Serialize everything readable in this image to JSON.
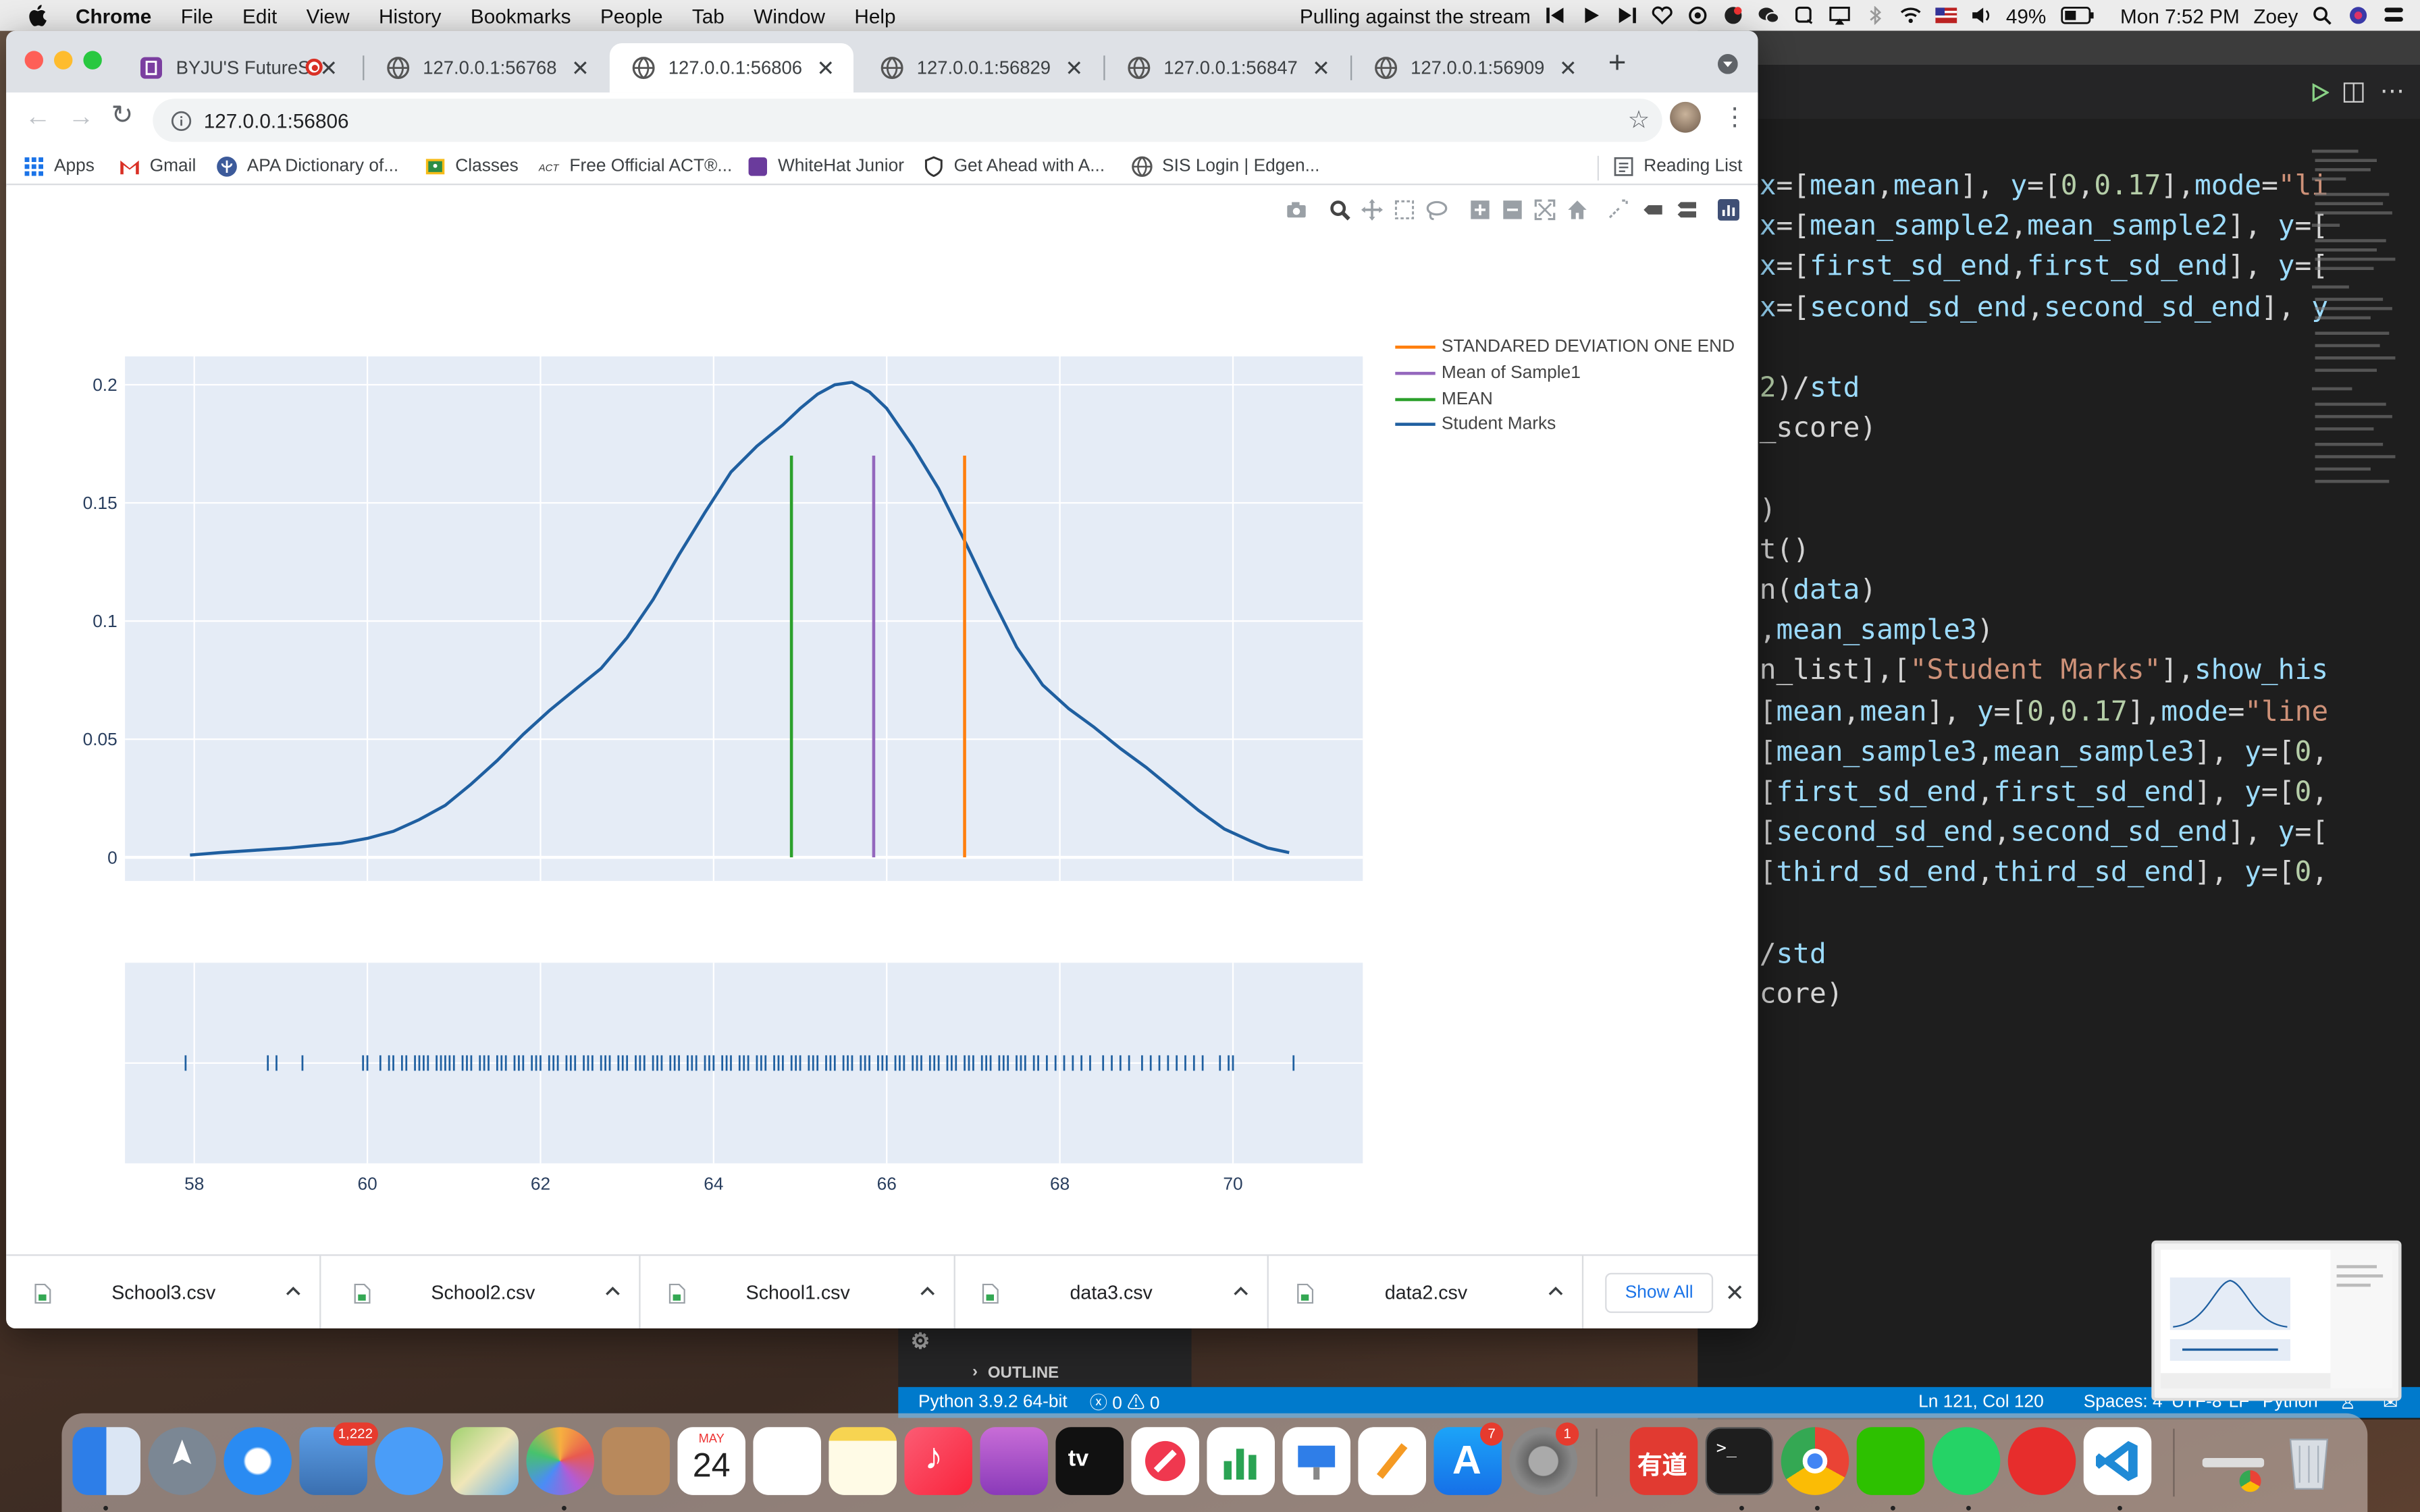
{
  "menubar": {
    "app": "Chrome",
    "items": [
      "File",
      "Edit",
      "View",
      "History",
      "Bookmarks",
      "People",
      "Tab",
      "Window",
      "Help"
    ],
    "now_playing": "Pulling against the stream",
    "battery": "49%",
    "clock": "Mon 7:52 PM",
    "user": "Zoey"
  },
  "browser": {
    "tabs": [
      {
        "title": "BYJU'S FutureSc"
      },
      {
        "title": "127.0.0.1:56768"
      },
      {
        "title": "127.0.0.1:56806"
      },
      {
        "title": "127.0.0.1:56829"
      },
      {
        "title": "127.0.0.1:56847"
      },
      {
        "title": "127.0.0.1:56909"
      }
    ],
    "active_tab": 2,
    "url": "127.0.0.1:56806",
    "bookmarks": [
      "Apps",
      "Gmail",
      "APA Dictionary of...",
      "Classes",
      "Free Official ACT®...",
      "WhiteHat Junior",
      "Get Ahead with A...",
      "SIS Login | Edgen..."
    ],
    "reading_list": "Reading List"
  },
  "chart_data": {
    "type": "line",
    "title": "",
    "xlabel": "",
    "ylabel": "",
    "xlim": [
      57.2,
      71.5
    ],
    "ylim": [
      -0.01,
      0.212
    ],
    "x_ticks": [
      58,
      60,
      62,
      64,
      66,
      68,
      70
    ],
    "y_ticks": [
      0,
      0.05,
      0.1,
      0.15,
      0.2
    ],
    "y_tick_labels": [
      "0",
      "0.05",
      "0.1",
      "0.15",
      "0.2"
    ],
    "grid": true,
    "legend_position": "top-right",
    "series": [
      {
        "name": "Student Marks",
        "color": "#1f5fa0",
        "x": [
          57.95,
          58.3,
          58.7,
          59.1,
          59.4,
          59.7,
          60.0,
          60.3,
          60.6,
          60.9,
          61.2,
          61.5,
          61.8,
          62.1,
          62.4,
          62.7,
          63.0,
          63.3,
          63.6,
          63.9,
          64.2,
          64.5,
          64.8,
          65.0,
          65.2,
          65.4,
          65.6,
          65.8,
          66.0,
          66.3,
          66.6,
          66.9,
          67.2,
          67.5,
          67.8,
          68.1,
          68.4,
          68.7,
          69.0,
          69.3,
          69.6,
          69.9,
          70.2,
          70.4,
          70.65
        ],
        "y": [
          0.001,
          0.002,
          0.003,
          0.004,
          0.005,
          0.006,
          0.008,
          0.011,
          0.016,
          0.022,
          0.031,
          0.041,
          0.052,
          0.062,
          0.071,
          0.08,
          0.093,
          0.109,
          0.128,
          0.146,
          0.163,
          0.174,
          0.183,
          0.19,
          0.196,
          0.2,
          0.201,
          0.197,
          0.19,
          0.174,
          0.156,
          0.134,
          0.111,
          0.089,
          0.073,
          0.063,
          0.055,
          0.046,
          0.038,
          0.029,
          0.02,
          0.012,
          0.007,
          0.004,
          0.002
        ]
      },
      {
        "name": "MEAN",
        "color": "#2ca02c",
        "x": [
          64.9,
          64.9
        ],
        "y": [
          0,
          0.17
        ]
      },
      {
        "name": "Mean of Sample1",
        "color": "#9467bd",
        "x": [
          65.85,
          65.85
        ],
        "y": [
          0,
          0.17
        ]
      },
      {
        "name": "STANDARED DEVIATION ONE END",
        "color": "#ff7f0e",
        "x": [
          66.9,
          66.9
        ],
        "y": [
          0,
          0.17
        ]
      }
    ],
    "rug": {
      "name": "Student Marks",
      "color": "#1f5fa0",
      "x": [
        57.9,
        58.85,
        58.95,
        59.25,
        59.95,
        60.0,
        60.15,
        60.25,
        60.3,
        60.4,
        60.45,
        60.55,
        60.6,
        60.65,
        60.7,
        60.8,
        60.85,
        60.9,
        60.95,
        61.0,
        61.1,
        61.15,
        61.2,
        61.3,
        61.35,
        61.4,
        61.5,
        61.55,
        61.6,
        61.7,
        61.75,
        61.8,
        61.9,
        61.95,
        62.0,
        62.1,
        62.15,
        62.2,
        62.3,
        62.35,
        62.4,
        62.5,
        62.55,
        62.6,
        62.7,
        62.75,
        62.8,
        62.9,
        62.95,
        63.0,
        63.1,
        63.15,
        63.2,
        63.3,
        63.35,
        63.4,
        63.5,
        63.55,
        63.6,
        63.7,
        63.75,
        63.8,
        63.9,
        63.95,
        64.0,
        64.1,
        64.15,
        64.2,
        64.3,
        64.35,
        64.4,
        64.5,
        64.55,
        64.6,
        64.7,
        64.75,
        64.8,
        64.9,
        64.95,
        65.0,
        65.1,
        65.15,
        65.2,
        65.3,
        65.35,
        65.4,
        65.5,
        65.55,
        65.6,
        65.7,
        65.75,
        65.8,
        65.9,
        65.95,
        66.0,
        66.1,
        66.15,
        66.2,
        66.3,
        66.35,
        66.4,
        66.5,
        66.55,
        66.6,
        66.7,
        66.75,
        66.8,
        66.9,
        66.95,
        67.0,
        67.1,
        67.15,
        67.2,
        67.3,
        67.35,
        67.4,
        67.5,
        67.55,
        67.6,
        67.7,
        67.75,
        67.85,
        67.95,
        68.05,
        68.15,
        68.25,
        68.35,
        68.5,
        68.6,
        68.7,
        68.8,
        68.95,
        69.05,
        69.15,
        69.25,
        69.35,
        69.45,
        69.55,
        69.65,
        69.85,
        69.95,
        70.0,
        70.7
      ]
    }
  },
  "modebar": {
    "icons": [
      "camera-icon",
      "zoom-icon",
      "pan-icon",
      "box-select-icon",
      "lasso-icon",
      "zoom-in-icon",
      "zoom-out-icon",
      "autoscale-icon",
      "reset-axes-icon",
      "spike-lines-icon",
      "hover-closest-icon",
      "hover-compare-icon",
      "plotly-logo-icon"
    ]
  },
  "downloads": {
    "files": [
      "School3.csv",
      "School2.csv",
      "School1.csv",
      "data3.csv",
      "data2.csv"
    ],
    "show_all": "Show All"
  },
  "vscode": {
    "code_lines": [
      "x=[mean,mean], y=[0,0.17],mode=\"li",
      "x=[mean_sample2,mean_sample2], y=[",
      "x=[first_sd_end,first_sd_end], y=[",
      "x=[second_sd_end,second_sd_end], y",
      "",
      "2)/std",
      "_score)",
      "",
      ")",
      "t()",
      "n(data)",
      ",mean_sample3)",
      "n_list],[\"Student Marks\"],show_his",
      "[mean,mean], y=[0,0.17],mode=\"line",
      "[mean_sample3,mean_sample3], y=[0,",
      "[first_sd_end,first_sd_end], y=[0,",
      "[second_sd_end,second_sd_end], y=[",
      "[third_sd_end,third_sd_end], y=[0,",
      "",
      "/std",
      "core)"
    ],
    "outline_label": "OUTLINE",
    "status": {
      "interpreter": "Python 3.9.2 64-bit",
      "problems": "ⓧ 0 ⚠ 0",
      "position": "Ln 121, Col 120",
      "spaces": "Spaces: 4",
      "encoding": "UTF-8",
      "eol": "LF",
      "language": "Python"
    }
  },
  "dock": {
    "mail_badge": "1,222",
    "calendar_month": "MAY",
    "calendar_day": "24",
    "appstore_badge": "7",
    "settings_badge": "1",
    "youdao_label": "有道"
  },
  "colors": {
    "plot_bg": "#e5ecf6",
    "accent": "#1a73e8",
    "vscode_status": "#007acc"
  }
}
